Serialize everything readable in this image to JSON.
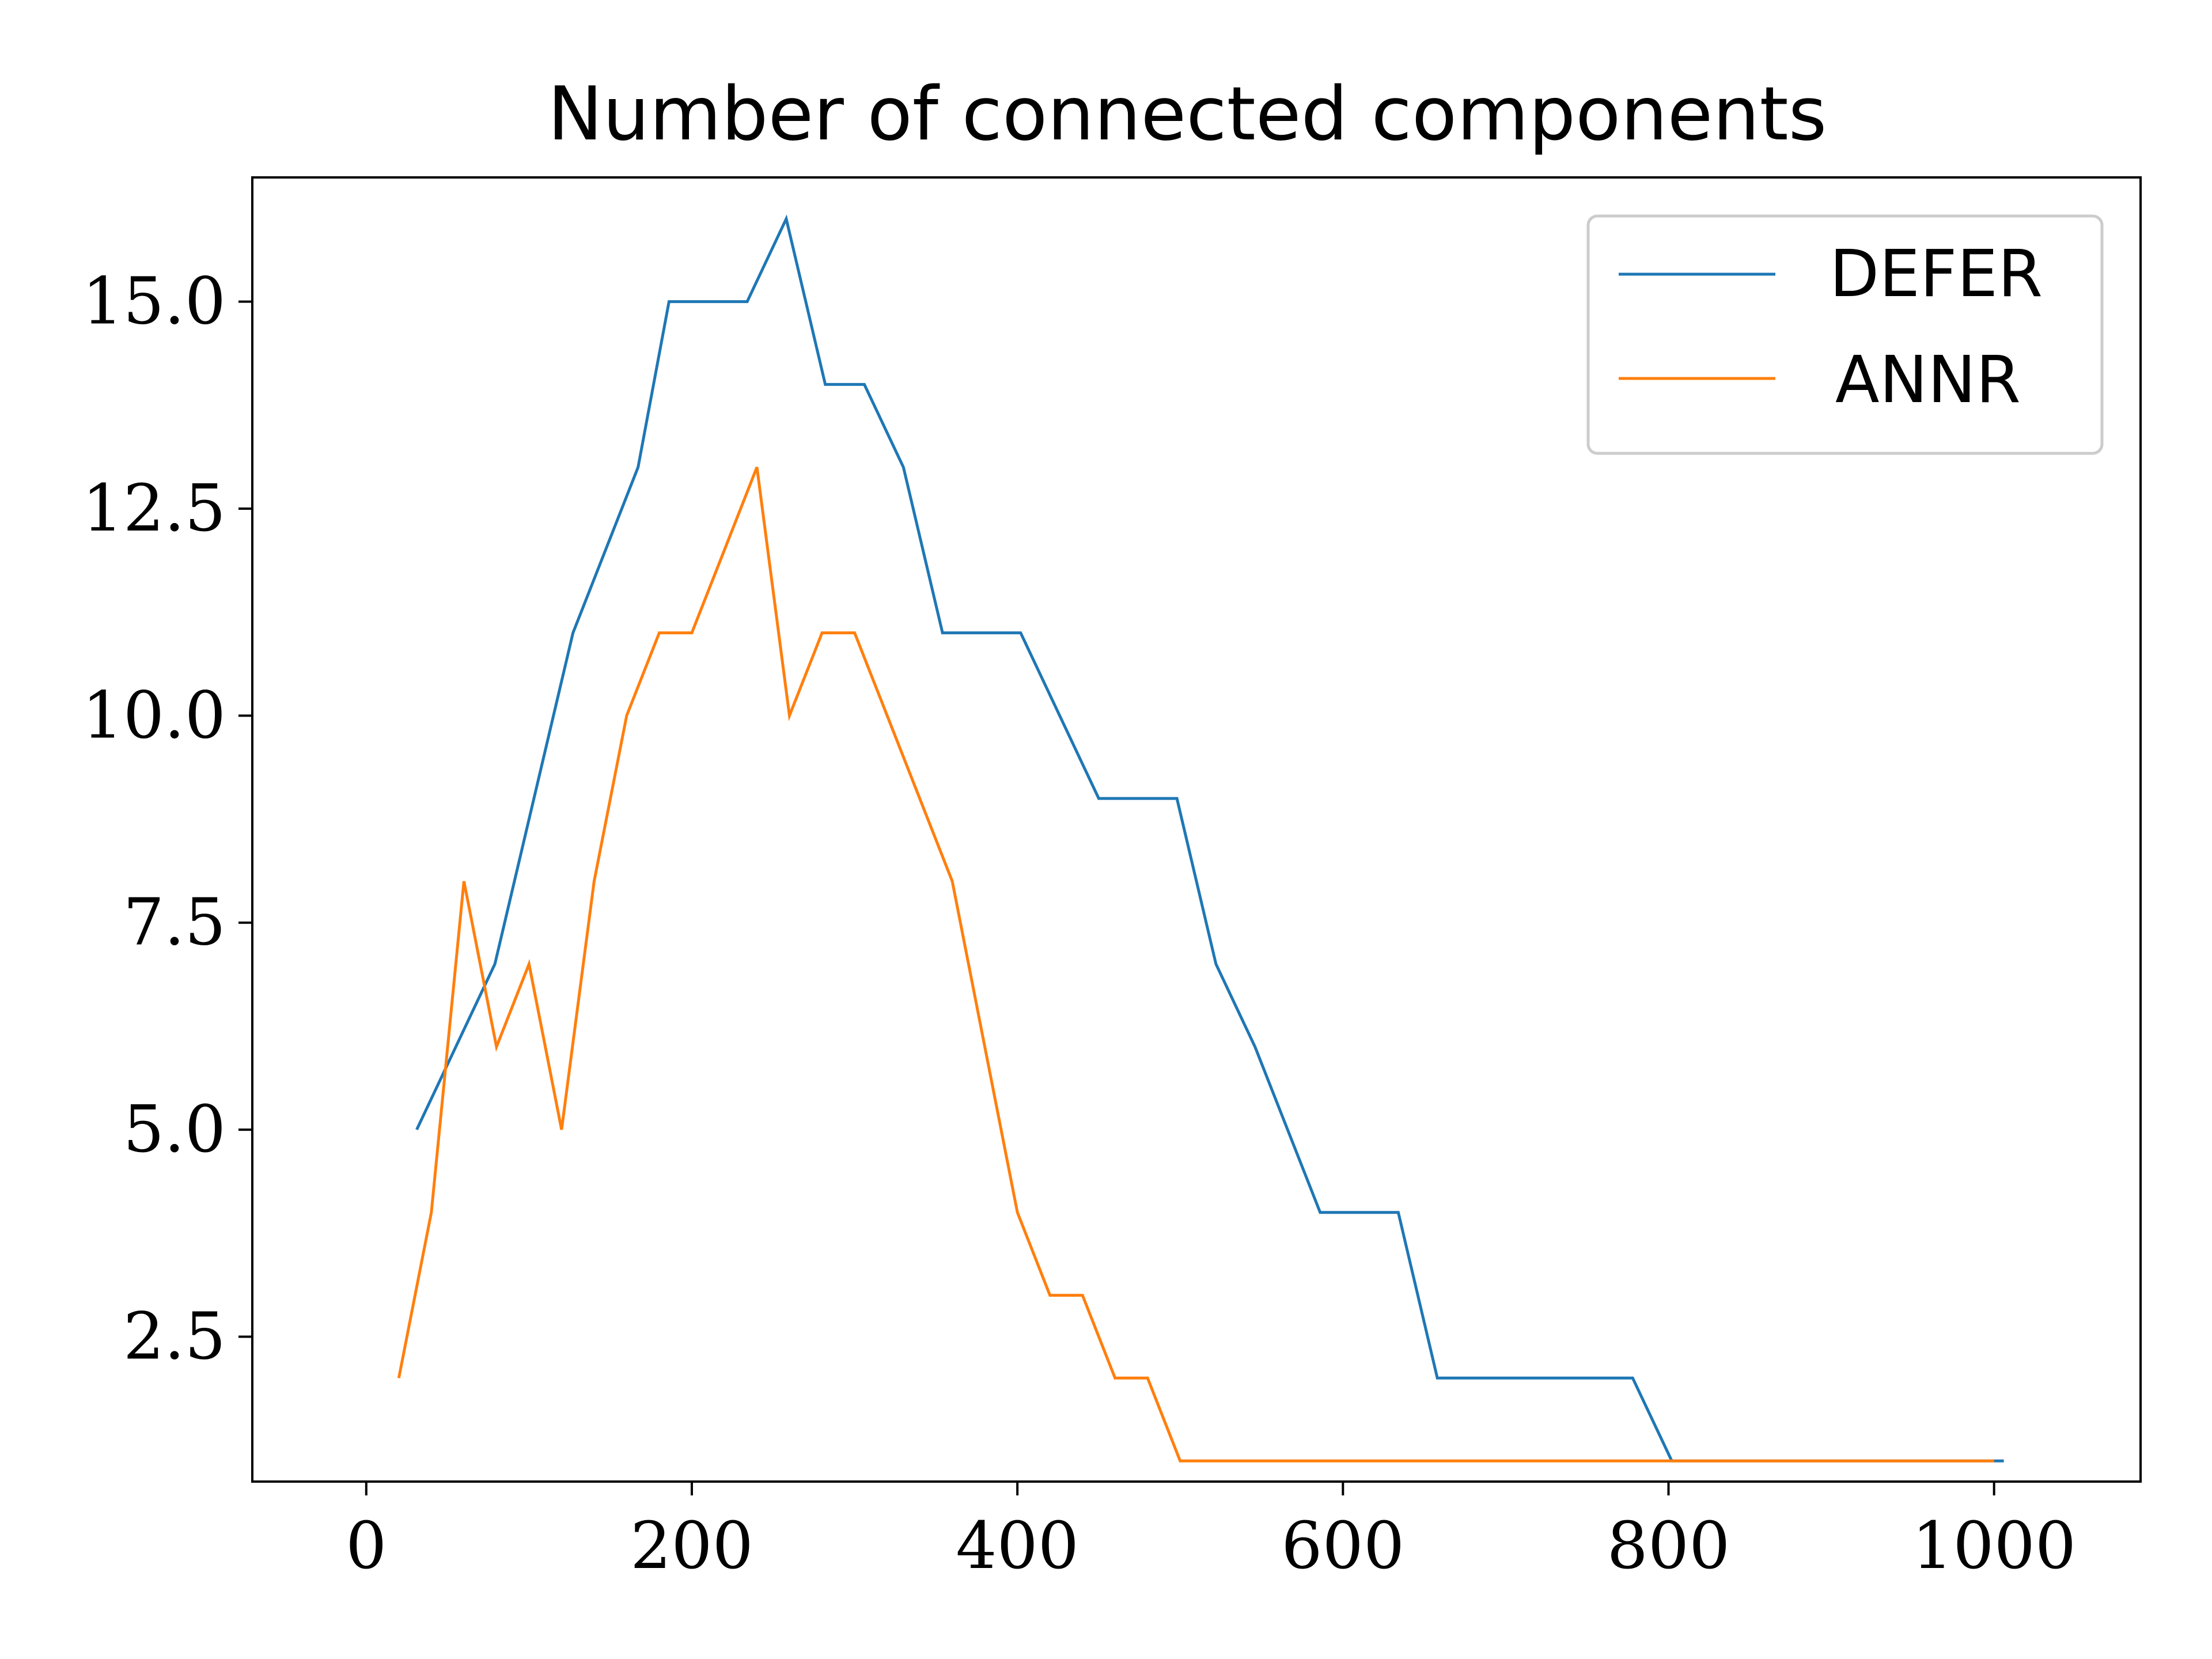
{
  "chart_data": {
    "type": "line",
    "title": "Number of connected components",
    "xlabel": "",
    "ylabel": "",
    "xlim": [
      -70,
      1090
    ],
    "ylim": [
      0.75,
      16.5
    ],
    "xticks": [
      0,
      200,
      400,
      600,
      800,
      1000
    ],
    "xtick_labels": [
      "0",
      "200",
      "400",
      "600",
      "800",
      "1000"
    ],
    "yticks": [
      2.5,
      5.0,
      7.5,
      10.0,
      12.5,
      15.0
    ],
    "ytick_labels": [
      "2.5",
      "5.0",
      "7.5",
      "10.0",
      "12.5",
      "15.0"
    ],
    "grid": false,
    "legend_position": "top-right",
    "series": [
      {
        "name": "DEFER",
        "color": "#1f77b4",
        "x": [
          31,
          79,
          103,
          127,
          167,
          186,
          234,
          258,
          282,
          306,
          330,
          354,
          402,
          450,
          498,
          522,
          546,
          586,
          634,
          658,
          778,
          802,
          1006
        ],
        "y": [
          5,
          7,
          9,
          11,
          13,
          15,
          15,
          16,
          14,
          14,
          13,
          11,
          11,
          9,
          9,
          7,
          6,
          4,
          4,
          2,
          2,
          1,
          1
        ]
      },
      {
        "name": "ANNR",
        "color": "#ff7f0e",
        "x": [
          20,
          40,
          60,
          80,
          100,
          120,
          140,
          160,
          180,
          200,
          220,
          240,
          260,
          280,
          300,
          320,
          340,
          360,
          380,
          400,
          420,
          440,
          460,
          480,
          500,
          1000
        ],
        "y": [
          2,
          4,
          8,
          6,
          7,
          5,
          8,
          10,
          11,
          11,
          12,
          13,
          10,
          11,
          11,
          10,
          9,
          8,
          6,
          4,
          3,
          3,
          2,
          2,
          1,
          1
        ]
      }
    ]
  }
}
